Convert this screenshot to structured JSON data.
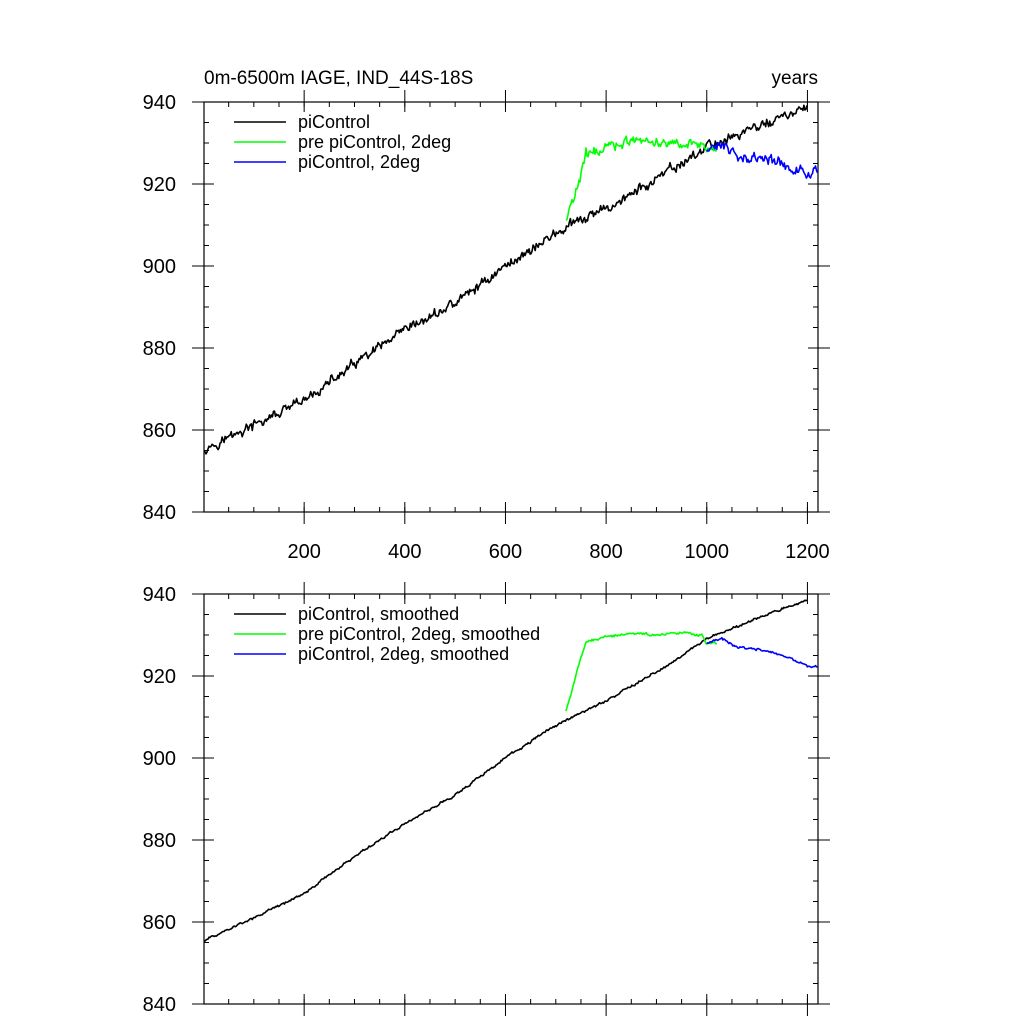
{
  "title_left": "0m-6500m IAGE, IND_44S-18S",
  "title_right": "years",
  "chart_data": [
    {
      "type": "line",
      "panel": "top",
      "title": "0m-6500m IAGE, IND_44S-18S",
      "xlabel": "years",
      "xlim": [
        1,
        1221
      ],
      "ylim": [
        840,
        940
      ],
      "xticks": [
        200,
        400,
        600,
        800,
        1000,
        1200
      ],
      "yticks": [
        840,
        860,
        880,
        900,
        920,
        940
      ],
      "x_tick_labels_shown": true,
      "legend_position": "top-left",
      "series": [
        {
          "name": "piControl",
          "color": "#000000",
          "smoothed": false,
          "x_range": [
            1,
            1200
          ],
          "knots": [
            [
              1,
              855.5
            ],
            [
              100,
              861
            ],
            [
              200,
              867
            ],
            [
              300,
              876
            ],
            [
              400,
              884
            ],
            [
              500,
              891
            ],
            [
              600,
              900
            ],
            [
              700,
              908
            ],
            [
              800,
              914
            ],
            [
              900,
              921
            ],
            [
              1000,
              929
            ],
            [
              1100,
              934
            ],
            [
              1200,
              938.5
            ]
          ]
        },
        {
          "name": "pre piControl, 2deg",
          "color": "#00ff00",
          "smoothed": false,
          "x_range": [
            720,
            1020
          ],
          "knots": [
            [
              720,
              911
            ],
            [
              740,
              918
            ],
            [
              760,
              927
            ],
            [
              800,
              929
            ],
            [
              850,
              930.5
            ],
            [
              900,
              930
            ],
            [
              950,
              930
            ],
            [
              990,
              930
            ],
            [
              1000,
              928
            ],
            [
              1020,
              928
            ]
          ]
        },
        {
          "name": "piControl, 2deg",
          "color": "#0000ff",
          "smoothed": false,
          "x_range": [
            1000,
            1221
          ],
          "knots": [
            [
              1000,
              928
            ],
            [
              1030,
              929.5
            ],
            [
              1060,
              927
            ],
            [
              1100,
              926.5
            ],
            [
              1150,
              925
            ],
            [
              1200,
              922.5
            ],
            [
              1221,
              922.5
            ]
          ]
        }
      ]
    },
    {
      "type": "line",
      "panel": "bottom",
      "title": "",
      "xlabel": "",
      "xlim": [
        1,
        1221
      ],
      "ylim": [
        840,
        940
      ],
      "xticks": [
        200,
        400,
        600,
        800,
        1000,
        1200
      ],
      "yticks": [
        840,
        860,
        880,
        900,
        920,
        940
      ],
      "x_tick_labels_shown": false,
      "legend_position": "top-left",
      "series": [
        {
          "name": "piControl, smoothed",
          "color": "#000000",
          "smoothed": true,
          "x_range": [
            1,
            1200
          ],
          "knots": [
            [
              1,
              855.5
            ],
            [
              100,
              861
            ],
            [
              200,
              867
            ],
            [
              300,
              876
            ],
            [
              400,
              884
            ],
            [
              500,
              891
            ],
            [
              600,
              900
            ],
            [
              700,
              908
            ],
            [
              800,
              914
            ],
            [
              900,
              921
            ],
            [
              1000,
              929
            ],
            [
              1100,
              934
            ],
            [
              1200,
              938.5
            ]
          ]
        },
        {
          "name": "pre piControl, 2deg, smoothed",
          "color": "#00ff00",
          "smoothed": true,
          "x_range": [
            720,
            1020
          ],
          "knots": [
            [
              720,
              911.5
            ],
            [
              740,
              920
            ],
            [
              760,
              928.5
            ],
            [
              800,
              929.5
            ],
            [
              850,
              930.5
            ],
            [
              900,
              930
            ],
            [
              950,
              930.5
            ],
            [
              990,
              930
            ],
            [
              1000,
              928
            ],
            [
              1020,
              928
            ]
          ]
        },
        {
          "name": "piControl, 2deg, smoothed",
          "color": "#0000ff",
          "smoothed": true,
          "x_range": [
            1000,
            1221
          ],
          "knots": [
            [
              1000,
              928
            ],
            [
              1030,
              929
            ],
            [
              1060,
              927
            ],
            [
              1100,
              926.5
            ],
            [
              1150,
              925
            ],
            [
              1200,
              922.5
            ],
            [
              1221,
              922.5
            ]
          ]
        }
      ]
    }
  ]
}
